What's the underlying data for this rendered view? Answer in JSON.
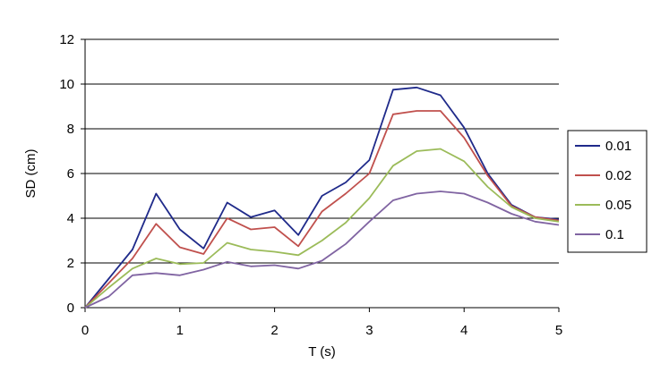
{
  "chart_data": {
    "type": "line",
    "title": "",
    "xlabel": "T (s)",
    "ylabel": "SD (cm)",
    "xlim": [
      0,
      5
    ],
    "ylim": [
      0,
      12
    ],
    "xticks": [
      "0",
      "1",
      "2",
      "3",
      "4",
      "5"
    ],
    "yticks": [
      "0",
      "2",
      "4",
      "6",
      "8",
      "10",
      "12"
    ],
    "grid": "horizontal",
    "legend_position": "right",
    "x": [
      0,
      0.25,
      0.5,
      0.75,
      1.0,
      1.25,
      1.5,
      1.75,
      2.0,
      2.25,
      2.5,
      2.75,
      3.0,
      3.25,
      3.5,
      3.75,
      4.0,
      4.25,
      4.5,
      4.75,
      5.0
    ],
    "series": [
      {
        "name": "0.01",
        "color": "#1f2a8a",
        "values": [
          0,
          1.3,
          2.6,
          5.1,
          3.5,
          2.65,
          4.7,
          4.05,
          4.35,
          3.25,
          5.0,
          5.6,
          6.6,
          9.75,
          9.85,
          9.5,
          8.05,
          6.0,
          4.6,
          4.05,
          3.95
        ]
      },
      {
        "name": "0.02",
        "color": "#c0504d",
        "values": [
          0,
          1.1,
          2.2,
          3.75,
          2.7,
          2.4,
          4.0,
          3.5,
          3.6,
          2.75,
          4.3,
          5.1,
          6.0,
          8.65,
          8.8,
          8.8,
          7.6,
          5.9,
          4.55,
          4.05,
          3.9
        ]
      },
      {
        "name": "0.05",
        "color": "#9bbb59",
        "values": [
          0,
          0.9,
          1.75,
          2.2,
          1.95,
          2.0,
          2.9,
          2.6,
          2.5,
          2.35,
          3.0,
          3.8,
          4.9,
          6.35,
          7.0,
          7.1,
          6.55,
          5.4,
          4.5,
          4.0,
          3.85
        ]
      },
      {
        "name": "0.1",
        "color": "#8064a2",
        "values": [
          0,
          0.5,
          1.45,
          1.55,
          1.45,
          1.7,
          2.05,
          1.85,
          1.9,
          1.75,
          2.1,
          2.85,
          3.85,
          4.8,
          5.1,
          5.2,
          5.1,
          4.7,
          4.2,
          3.85,
          3.7
        ]
      }
    ]
  }
}
